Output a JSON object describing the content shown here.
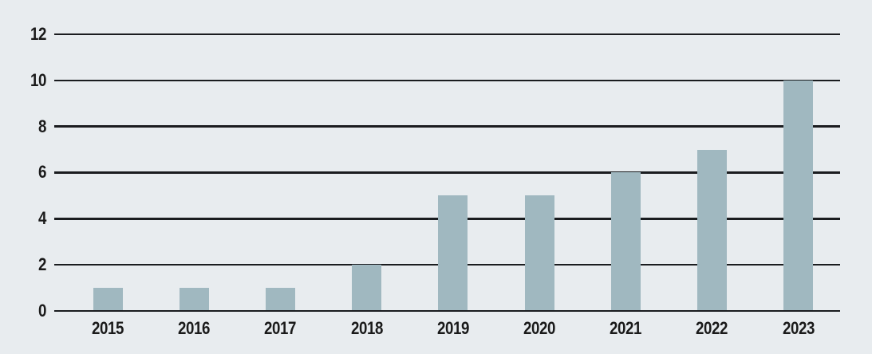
{
  "chart_data": {
    "type": "bar",
    "title": "",
    "categories": [
      "2015",
      "2016",
      "2017",
      "2018",
      "2019",
      "2020",
      "2021",
      "2022",
      "2023"
    ],
    "values": [
      1,
      1,
      1,
      2,
      5,
      5,
      6,
      7,
      10
    ],
    "xlabel": "",
    "ylabel": "",
    "ylim": [
      0,
      12
    ],
    "yticks": [
      0,
      2,
      4,
      6,
      8,
      10,
      12
    ],
    "grid": "horizontal",
    "legend": "none",
    "colors": {
      "background": "#e8ecef",
      "bar": "#a0b8c0",
      "gridline": "#1a1c1f",
      "text": "#1a1a1a"
    }
  }
}
